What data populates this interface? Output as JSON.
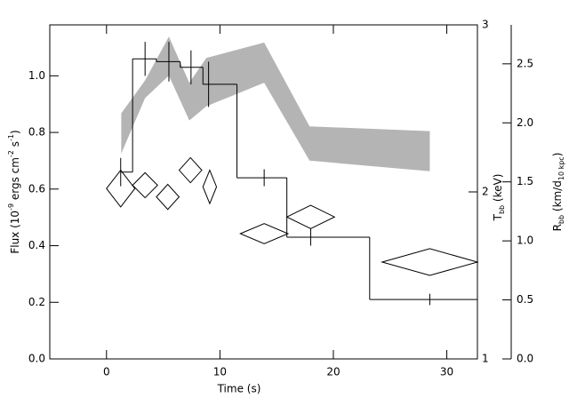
{
  "chart_data": {
    "type": "step",
    "xlabel": "Time (s)",
    "ylabel": [
      "Flux (10",
      "-9",
      " ergs cm",
      "-2",
      " s",
      "-1",
      ")"
    ],
    "y2label": [
      "T",
      "bb",
      " (keV)"
    ],
    "y3label": [
      "R",
      "bb",
      " (km/d",
      "10 kpc",
      ")"
    ],
    "xlim": [
      -5,
      32.7
    ],
    "xticks": [
      0,
      10,
      20,
      30
    ],
    "ylim": [
      0,
      1.18
    ],
    "yticks": [
      {
        "value": 0,
        "label": "0.0"
      },
      {
        "value": 0.2,
        "label": "0.2"
      },
      {
        "value": 0.4,
        "label": "0.4"
      },
      {
        "value": 0.6,
        "label": "0.6"
      },
      {
        "value": 0.8,
        "label": "0.8"
      },
      {
        "value": 1,
        "label": "1.0"
      }
    ],
    "y2lim": [
      1,
      3
    ],
    "y2ticks": [
      1,
      2,
      3
    ],
    "y3lim": [
      0,
      2.83
    ],
    "y3ticks": [
      {
        "value": 0,
        "label": "0.0"
      },
      {
        "value": 0.5,
        "label": "0.5"
      },
      {
        "value": 1,
        "label": "1.0"
      },
      {
        "value": 1.5,
        "label": "1.5"
      },
      {
        "value": 2,
        "label": "2.0"
      },
      {
        "value": 2.5,
        "label": "2.5"
      }
    ],
    "flux": {
      "color": "#000000",
      "bins": [
        1.25,
        2.3,
        4.4,
        6.5,
        8.5,
        11.5,
        15.9,
        23.2,
        32.7
      ],
      "values": [
        0.66,
        1.06,
        1.05,
        1.03,
        0.97,
        0.64,
        0.43,
        0.21
      ],
      "x": [
        1.25,
        3.4,
        5.5,
        7.45,
        9.0,
        13.9,
        18.0,
        28.5
      ],
      "errors": [
        0.05,
        0.06,
        0.07,
        0.06,
        0.08,
        0.03,
        0.03,
        0.02
      ]
    },
    "temperature": {
      "axis": "y2",
      "color": "#000000",
      "x": [
        1.25,
        3.4,
        5.4,
        7.4,
        9.1,
        13.9,
        18.0,
        28.5
      ],
      "values": [
        2.02,
        2.04,
        1.97,
        2.13,
        2.03,
        1.75,
        1.85,
        1.58
      ],
      "x_errors": [
        1.25,
        1.1,
        1.0,
        1.0,
        0.6,
        2.1,
        2.1,
        4.2
      ],
      "errors": [
        0.11,
        0.075,
        0.075,
        0.075,
        0.1,
        0.06,
        0.07,
        0.08
      ]
    },
    "radius": {
      "axis": "y3",
      "color": "#b4b4b4",
      "x": [
        1.3,
        3.4,
        5.5,
        7.3,
        8.8,
        13.9,
        17.9,
        28.5
      ],
      "upper": [
        2.08,
        2.36,
        2.73,
        2.34,
        2.55,
        2.68,
        1.97,
        1.93
      ],
      "lower": [
        1.74,
        2.21,
        2.4,
        2.02,
        2.14,
        2.34,
        1.68,
        1.59
      ]
    }
  }
}
